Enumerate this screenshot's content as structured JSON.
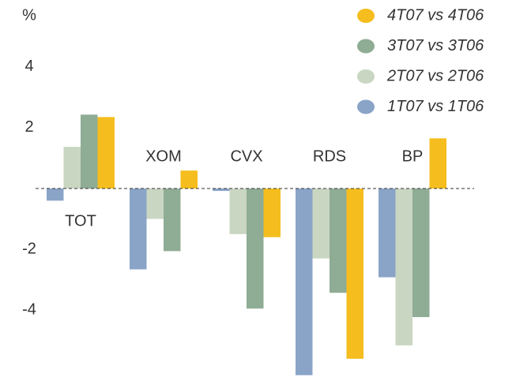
{
  "chart_data": {
    "type": "bar",
    "y_label": "%",
    "categories": [
      "TOT",
      "XOM",
      "CVX",
      "RDS",
      "BP"
    ],
    "series": [
      {
        "name": "1T07 vs 1T06",
        "color": "#8aa4c8",
        "values": [
          -0.4,
          -2.66,
          -0.08,
          -6.14,
          -2.92
        ]
      },
      {
        "name": "2T07 vs 2T06",
        "color": "#c9d6c2",
        "values": [
          1.37,
          -1.0,
          -1.5,
          -2.3,
          -5.16
        ]
      },
      {
        "name": "3T07 vs 3T06",
        "color": "#8fac95",
        "values": [
          2.43,
          -2.06,
          -3.95,
          -3.43,
          -4.23
        ]
      },
      {
        "name": "4T07 vs 4T06",
        "color": "#f5be1e",
        "values": [
          2.35,
          0.59,
          -1.6,
          -5.6,
          1.65
        ]
      }
    ],
    "ylim": [
      -6.2,
      6.2
    ],
    "yticks": [
      -4,
      -2,
      2,
      4
    ],
    "legend": "top-right"
  }
}
